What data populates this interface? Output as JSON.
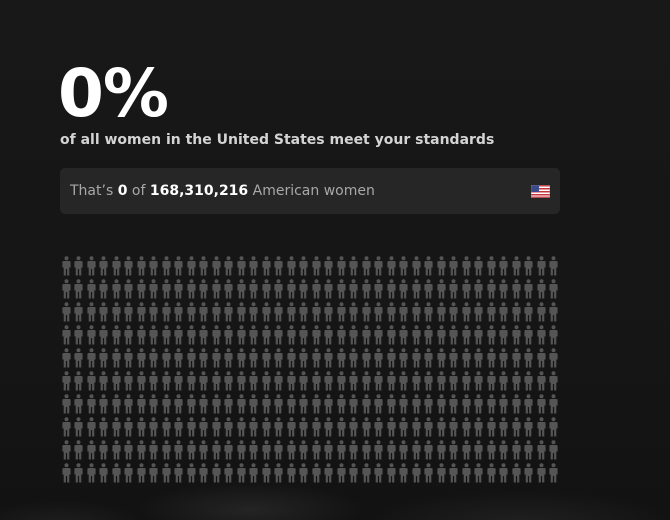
{
  "stat": {
    "percent": "0%",
    "subtitle": "of all women in the United States meet your standards"
  },
  "info": {
    "prefix": "That’s",
    "matched": "0",
    "of_word": "of",
    "total": "168,310,216",
    "suffix": "American women",
    "flag_icon": "us-flag-icon"
  },
  "grid": {
    "rows": 10,
    "columns": 40,
    "highlighted": 0,
    "person_color": "#555555",
    "highlight_color": "#ffffff",
    "icon": "person-icon"
  }
}
